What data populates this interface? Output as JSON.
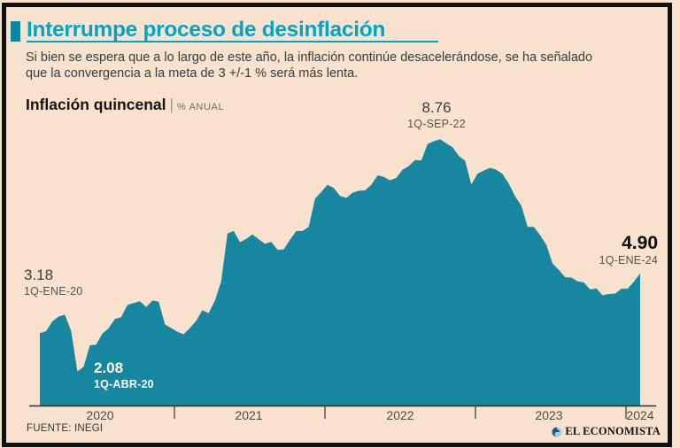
{
  "page": {
    "background_color": "#f8e2cd",
    "frame_color": "#111111"
  },
  "header": {
    "title": "Interrumpe proceso de desinflación",
    "accent_color": "#00a4c8",
    "subtitle_line1": "Si bien se espera que a lo largo de este año, la inflación continúe desacelerándose, se ha señalado",
    "subtitle_line2": "que la convergencia a la meta de 3 +/-1 % será más lenta."
  },
  "chart_heading": {
    "title": "Inflación quincenal",
    "separator": "|",
    "unit": "% ANUAL"
  },
  "chart_data": {
    "type": "area",
    "x_start": "1Q-ENE-2020",
    "x_end": "1Q-ENE-2024",
    "points_per_year": 24,
    "x_tick_labels": [
      "2020",
      "2021",
      "2022",
      "2023",
      "2024"
    ],
    "ylim": [
      1.1,
      9.2
    ],
    "grid": false,
    "area_color": "#16879e",
    "axis_color": "#2e2e2e",
    "series": [
      {
        "name": "Inflación quincenal (% anual)",
        "values": [
          3.18,
          3.24,
          3.52,
          3.66,
          3.71,
          3.25,
          2.08,
          2.21,
          2.83,
          2.85,
          3.17,
          3.32,
          3.59,
          3.64,
          3.99,
          4.05,
          4.1,
          3.93,
          4.12,
          4.09,
          3.43,
          3.33,
          3.22,
          3.15,
          3.33,
          3.54,
          3.84,
          3.76,
          4.12,
          4.67,
          6.05,
          6.12,
          5.8,
          5.89,
          6.02,
          5.88,
          5.75,
          5.81,
          5.58,
          5.59,
          5.87,
          6.12,
          6.12,
          6.24,
          7.05,
          7.24,
          7.45,
          7.36,
          7.13,
          7.07,
          7.22,
          7.28,
          7.29,
          7.45,
          7.72,
          7.68,
          7.58,
          7.65,
          7.88,
          7.99,
          8.16,
          8.15,
          8.62,
          8.7,
          8.76,
          8.64,
          8.53,
          8.28,
          8.14,
          7.46,
          7.77,
          7.86,
          7.94,
          7.88,
          7.76,
          7.48,
          7.12,
          6.85,
          6.24,
          6.24,
          6.0,
          5.72,
          5.18,
          5.0,
          4.79,
          4.78,
          4.67,
          4.64,
          4.44,
          4.47,
          4.27,
          4.31,
          4.32,
          4.46,
          4.46,
          4.66,
          4.9
        ]
      }
    ],
    "annotations": [
      {
        "value": "3.18",
        "label": "1Q-ENE-20"
      },
      {
        "value": "2.08",
        "label": "1Q-ABR-20"
      },
      {
        "value": "8.76",
        "label": "1Q-SEP-22"
      },
      {
        "value": "4.90",
        "label": "1Q-ENE-24"
      }
    ]
  },
  "footer": {
    "source": "FUENTE: INEGI",
    "brand": "EL ECONOMISTA"
  }
}
